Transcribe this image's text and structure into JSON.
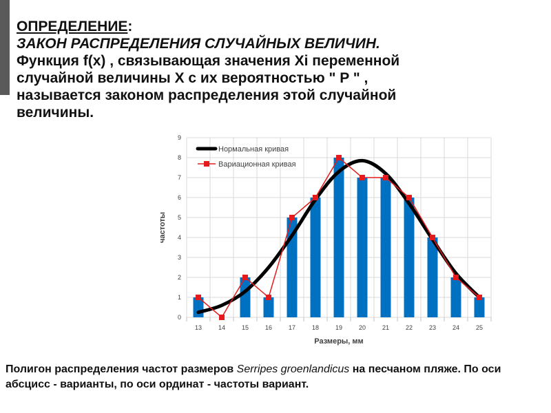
{
  "heading": {
    "term": "ОПРЕДЕЛЕНИЕ",
    "colon": ":",
    "title": "ЗАКОН РАСПРЕДЕЛЕНИЯ СЛУЧАЙНЫХ ВЕЛИЧИН.",
    "body_lines": [
      "Функция f(x)  , связывающая значения Xi переменной",
      "случайной величины X с их вероятностью \" P \" ,",
      "называется законом распределения этой случайной",
      "величины."
    ]
  },
  "caption": {
    "before": "Полигон распределения частот размеров ",
    "species": "Serripes groenlandicus",
    "after": " на песчаном пляже. По оси абсцисс - варианты, по оси ординат  - частоты вариант."
  },
  "chart_data": {
    "type": "bar",
    "categories": [
      "13",
      "14",
      "15",
      "16",
      "17",
      "18",
      "19",
      "20",
      "21",
      "22",
      "23",
      "24",
      "25"
    ],
    "series": [
      {
        "kind": "bar",
        "values": [
          1,
          0,
          2,
          1,
          5,
          6,
          8,
          7,
          7,
          6,
          4,
          2,
          1
        ]
      },
      {
        "kind": "line-markers",
        "name": "Вариационная кривая",
        "values": [
          1,
          0,
          2,
          1,
          5,
          6,
          8,
          7,
          7,
          6,
          4,
          2,
          1
        ]
      },
      {
        "kind": "smooth-curve",
        "name": "Нормальная кривая",
        "values": [
          0.25,
          0.6,
          1.3,
          2.5,
          4.1,
          5.9,
          7.3,
          7.85,
          7.2,
          5.7,
          3.9,
          2.2,
          1.0
        ]
      }
    ],
    "xlabel": "Размеры, мм",
    "ylabel": "частоты",
    "ylim": [
      0,
      9
    ],
    "yticks": [
      0,
      1,
      2,
      3,
      4,
      5,
      6,
      7,
      8,
      9
    ],
    "grid": true,
    "legend": "top-left",
    "colors": {
      "bar": "#0070c0",
      "variation": "#e41a1c",
      "normal": "#000000",
      "grid": "#d9d9d9"
    }
  }
}
